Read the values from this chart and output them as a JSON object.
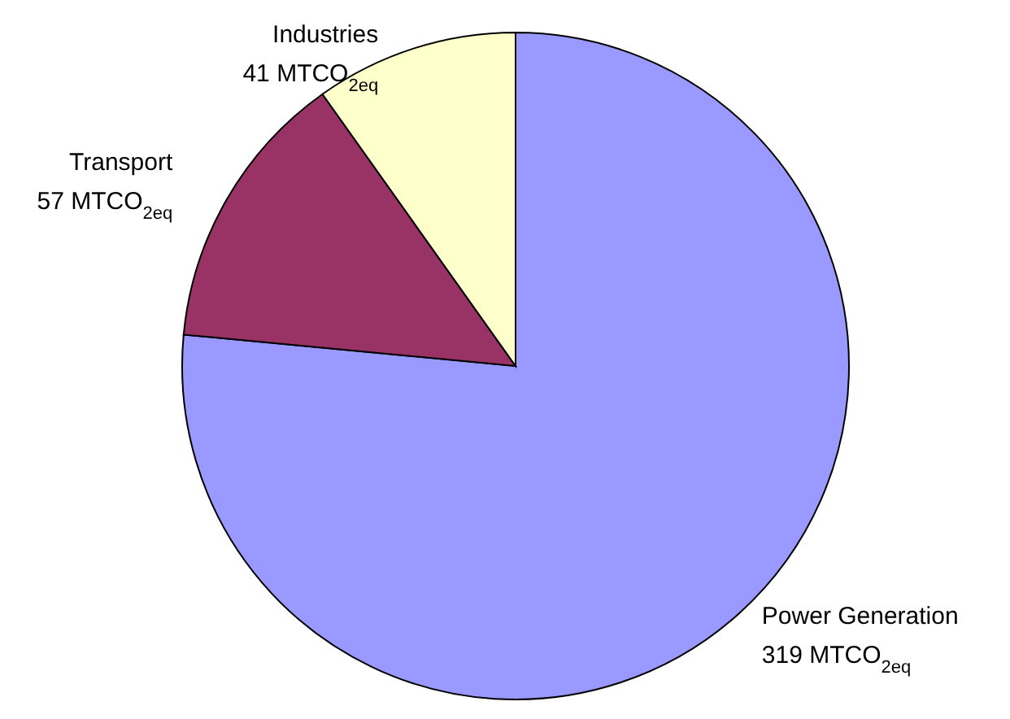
{
  "chart_data": {
    "type": "pie",
    "categories": [
      "Power Generation",
      "Transport",
      "Industries"
    ],
    "values": [
      319,
      57,
      41
    ],
    "colors": [
      "#9999ff",
      "#993366",
      "#ffffcc"
    ],
    "value_labels": [
      "319 MTCO$_{2eq}$",
      "57 MTCO$_{2eq}$",
      "41 MTCO$_{2eq}$"
    ]
  }
}
